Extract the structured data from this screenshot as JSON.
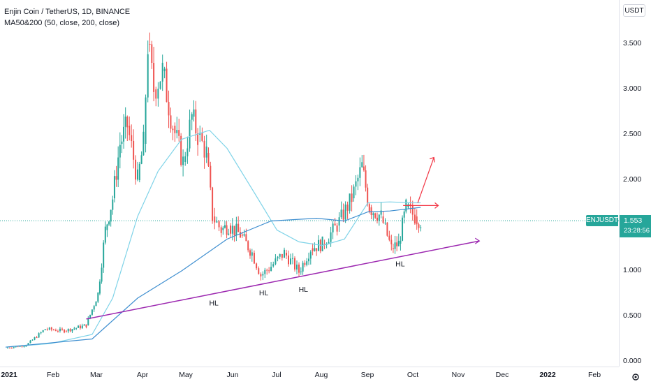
{
  "legend": {
    "title": "Enjin Coin / TetherUS, 1D, BINANCE",
    "indicator": "MA50&200 (50, close, 200, close)"
  },
  "currency_button": "USDT",
  "symbol_tag": "ENJUSDT",
  "price_tag": {
    "value": "1.553",
    "countdown": "23:28:56"
  },
  "colors": {
    "up": "#26a69a",
    "down": "#ef5350",
    "ma50": "#7fd3e8",
    "ma200": "#3f8fd0",
    "trendline": "#9c27b0",
    "projection": "#f23645"
  },
  "chart_data": {
    "type": "candlestick",
    "y_ticks": [
      "3.500",
      "3.000",
      "2.500",
      "2.000",
      "1.500",
      "1.000",
      "0.500",
      "0.000"
    ],
    "ylim": [
      -0.03,
      3.95
    ],
    "x_ticks": [
      "2021",
      "Feb",
      "Mar",
      "Apr",
      "May",
      "Jun",
      "Jul",
      "Aug",
      "Sep",
      "Oct",
      "Nov",
      "Dec",
      "2022",
      "Feb"
    ],
    "series": [
      {
        "name": "close",
        "points": [
          [
            "2021-01-01",
            0.15
          ],
          [
            "2021-01-15",
            0.18
          ],
          [
            "2021-01-28",
            0.36
          ],
          [
            "2021-02-10",
            0.34
          ],
          [
            "2021-02-25",
            0.4
          ],
          [
            "2021-03-05",
            0.75
          ],
          [
            "2021-03-10",
            1.45
          ],
          [
            "2021-03-15",
            1.8
          ],
          [
            "2021-03-20",
            2.4
          ],
          [
            "2021-03-25",
            2.6
          ],
          [
            "2021-04-01",
            2.0
          ],
          [
            "2021-04-05",
            2.4
          ],
          [
            "2021-04-08",
            3.5
          ],
          [
            "2021-04-12",
            3.0
          ],
          [
            "2021-04-18",
            3.2
          ],
          [
            "2021-04-25",
            2.6
          ],
          [
            "2021-05-02",
            2.2
          ],
          [
            "2021-05-08",
            2.7
          ],
          [
            "2021-05-12",
            2.5
          ],
          [
            "2021-05-18",
            2.3
          ],
          [
            "2021-05-22",
            1.6
          ],
          [
            "2021-05-28",
            1.45
          ],
          [
            "2021-06-02",
            1.5
          ],
          [
            "2021-06-10",
            1.4
          ],
          [
            "2021-06-18",
            1.2
          ],
          [
            "2021-06-24",
            0.95
          ],
          [
            "2021-07-01",
            1.05
          ],
          [
            "2021-07-10",
            1.2
          ],
          [
            "2021-07-20",
            0.99
          ],
          [
            "2021-07-28",
            1.25
          ],
          [
            "2021-08-05",
            1.3
          ],
          [
            "2021-08-15",
            1.5
          ],
          [
            "2021-08-25",
            1.8
          ],
          [
            "2021-09-01",
            2.15
          ],
          [
            "2021-09-06",
            1.7
          ],
          [
            "2021-09-14",
            1.6
          ],
          [
            "2021-09-21",
            1.25
          ],
          [
            "2021-09-26",
            1.3
          ],
          [
            "2021-10-01",
            1.7
          ],
          [
            "2021-10-07",
            1.6
          ],
          [
            "2021-10-11",
            1.55
          ]
        ]
      },
      {
        "name": "MA50",
        "points": [
          [
            "2021-01-01",
            0.16
          ],
          [
            "2021-02-01",
            0.2
          ],
          [
            "2021-03-01",
            0.3
          ],
          [
            "2021-03-15",
            0.7
          ],
          [
            "2021-04-01",
            1.6
          ],
          [
            "2021-04-15",
            2.1
          ],
          [
            "2021-05-01",
            2.45
          ],
          [
            "2021-05-20",
            2.55
          ],
          [
            "2021-06-01",
            2.35
          ],
          [
            "2021-06-20",
            1.85
          ],
          [
            "2021-07-05",
            1.45
          ],
          [
            "2021-07-20",
            1.32
          ],
          [
            "2021-08-05",
            1.28
          ],
          [
            "2021-08-20",
            1.35
          ],
          [
            "2021-09-05",
            1.75
          ],
          [
            "2021-09-20",
            1.76
          ],
          [
            "2021-10-05",
            1.75
          ],
          [
            "2021-10-11",
            1.75
          ]
        ]
      },
      {
        "name": "MA200",
        "points": [
          [
            "2021-01-01",
            0.16
          ],
          [
            "2021-03-01",
            0.25
          ],
          [
            "2021-04-01",
            0.7
          ],
          [
            "2021-05-01",
            1.0
          ],
          [
            "2021-06-01",
            1.35
          ],
          [
            "2021-07-01",
            1.55
          ],
          [
            "2021-08-01",
            1.58
          ],
          [
            "2021-08-20",
            1.55
          ],
          [
            "2021-09-05",
            1.65
          ],
          [
            "2021-09-20",
            1.66
          ],
          [
            "2021-10-11",
            1.7
          ]
        ]
      }
    ],
    "annotations": [
      "HL",
      "HL",
      "HL",
      "HL"
    ]
  }
}
